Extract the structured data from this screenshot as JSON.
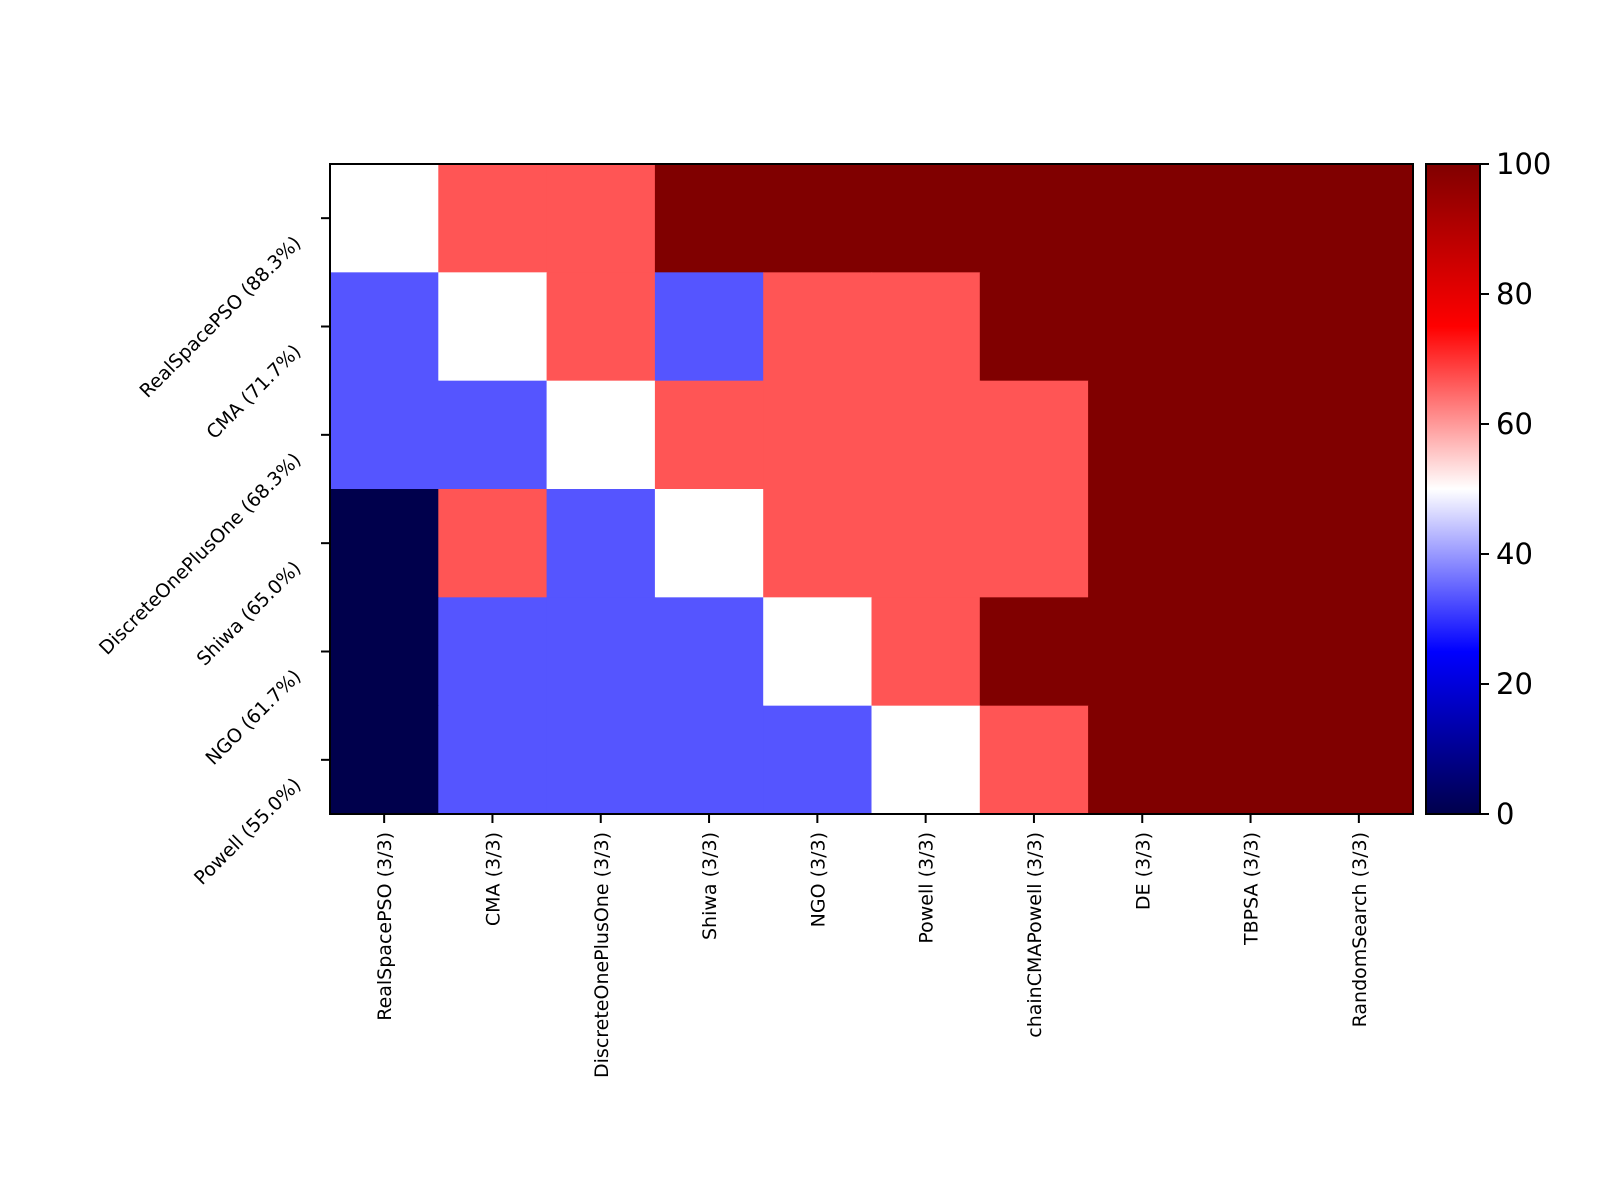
{
  "chart_data": {
    "type": "heatmap",
    "title": "",
    "xlabel": "",
    "ylabel": "",
    "x_labels": [
      "RealSpacePSO (3/3)",
      "CMA (3/3)",
      "DiscreteOnePlusOne (3/3)",
      "Shiwa (3/3)",
      "NGO (3/3)",
      "Powell (3/3)",
      "chainCMAPowell (3/3)",
      "DE (3/3)",
      "TBPSA (3/3)",
      "RandomSearch (3/3)"
    ],
    "y_labels": [
      "RealSpacePSO (88.3%)",
      "CMA (71.7%)",
      "DiscreteOnePlusOne (68.3%)",
      "Shiwa (65.0%)",
      "NGO (61.7%)",
      "Powell (55.0%)"
    ],
    "values": [
      [
        50,
        66.7,
        66.7,
        100,
        100,
        100,
        100,
        100,
        100,
        100
      ],
      [
        33.3,
        50,
        66.7,
        33.3,
        66.7,
        66.7,
        100,
        100,
        100,
        100
      ],
      [
        33.3,
        33.3,
        50,
        66.7,
        66.7,
        66.7,
        66.7,
        100,
        100,
        100
      ],
      [
        0,
        66.7,
        33.3,
        50,
        66.7,
        66.7,
        66.7,
        100,
        100,
        100
      ],
      [
        0,
        33.3,
        33.3,
        33.3,
        50,
        66.7,
        100,
        100,
        100,
        100
      ],
      [
        0,
        33.3,
        33.3,
        33.3,
        33.3,
        50,
        66.7,
        100,
        100,
        100
      ]
    ],
    "colorscale": "seismic",
    "colorbar": {
      "range": [
        0,
        100
      ],
      "ticks": [
        0,
        20,
        40,
        60,
        80,
        100
      ]
    },
    "colors": {
      "min": "#00004c",
      "low": "#0000ff",
      "mid": "#ffffff",
      "high": "#ff0000",
      "max": "#800000"
    }
  }
}
